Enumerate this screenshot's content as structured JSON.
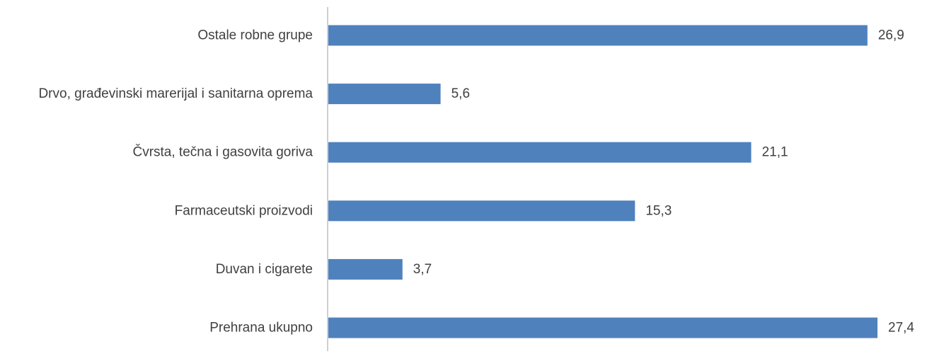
{
  "chart_data": {
    "type": "bar",
    "orientation": "horizontal",
    "categories": [
      "Ostale robne grupe",
      "Drvo, građevinski marerijal i sanitarna oprema",
      "Čvrsta, tečna i gasovita goriva",
      "Farmaceutski proizvodi",
      "Duvan i cigarete",
      "Prehrana ukupno"
    ],
    "values": [
      26.9,
      5.6,
      21.1,
      15.3,
      3.7,
      27.4
    ],
    "value_labels": [
      "26,9",
      "5,6",
      "21,1",
      "15,3",
      "3,7",
      "27,4"
    ],
    "xlim": [
      0,
      27.4
    ],
    "grid": false,
    "legend": "none",
    "colors": {
      "bar": "#4F81BD",
      "axis": "#BFBFBF",
      "text": "#404040"
    }
  }
}
